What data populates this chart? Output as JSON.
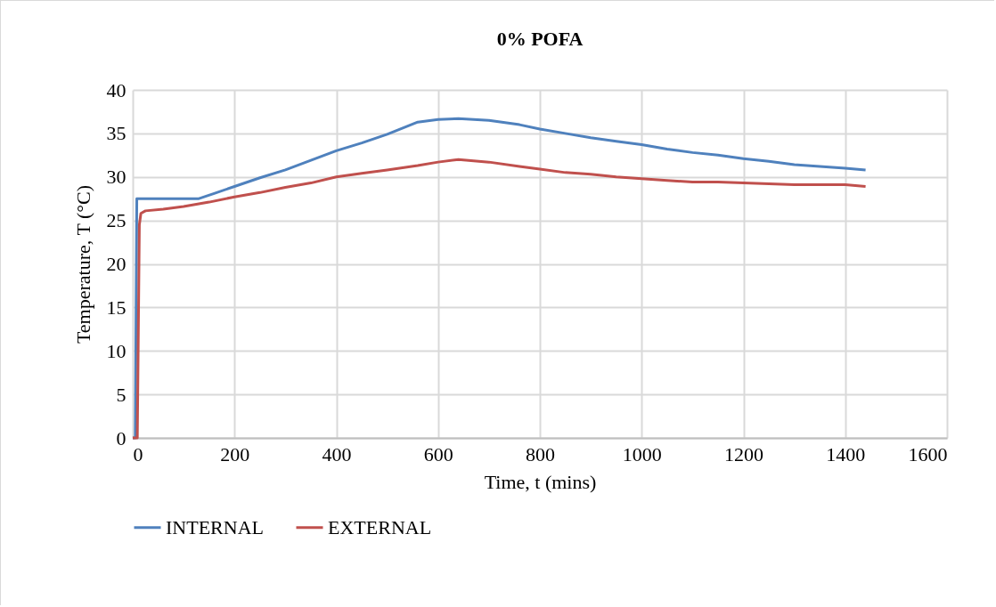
{
  "chart_data": {
    "type": "line",
    "title": "0% POFA",
    "xlabel": "Time, t (mins)",
    "ylabel": "Temperature, T (°C)",
    "xlim": [
      0,
      1600
    ],
    "xticks": [
      0,
      200,
      400,
      600,
      800,
      1000,
      1200,
      1400,
      1600
    ],
    "ylim": [
      0,
      40
    ],
    "yticks": [
      0,
      5,
      10,
      15,
      20,
      25,
      30,
      35,
      40
    ],
    "grid": true,
    "legend": "bottom",
    "marker": "none",
    "line_style": "solid",
    "series": [
      {
        "name": "INTERNAL",
        "color": "#4f81bd",
        "x": [
          0,
          5,
          8,
          130,
          160,
          200,
          250,
          300,
          350,
          400,
          450,
          500,
          560,
          600,
          640,
          700,
          760,
          800,
          850,
          900,
          950,
          1000,
          1050,
          1100,
          1150,
          1200,
          1250,
          1300,
          1350,
          1400,
          1440
        ],
        "values": [
          0,
          0,
          27.5,
          27.5,
          28.1,
          28.9,
          29.9,
          30.8,
          31.9,
          33.0,
          33.9,
          34.9,
          36.3,
          36.6,
          36.7,
          36.5,
          36.0,
          35.5,
          35.0,
          34.5,
          34.1,
          33.7,
          33.2,
          32.8,
          32.5,
          32.1,
          31.8,
          31.4,
          31.2,
          31.0,
          30.8
        ]
      },
      {
        "name": "EXTERNAL",
        "color": "#c0504d",
        "x": [
          0,
          9,
          13,
          16,
          25,
          60,
          100,
          150,
          200,
          250,
          300,
          350,
          400,
          450,
          500,
          560,
          600,
          640,
          700,
          760,
          800,
          850,
          900,
          950,
          1000,
          1050,
          1100,
          1150,
          1200,
          1250,
          1300,
          1350,
          1400,
          1440
        ],
        "values": [
          0,
          0,
          24.5,
          25.8,
          26.1,
          26.3,
          26.6,
          27.1,
          27.7,
          28.2,
          28.8,
          29.3,
          30.0,
          30.4,
          30.8,
          31.3,
          31.7,
          32.0,
          31.7,
          31.2,
          30.9,
          30.5,
          30.3,
          30.0,
          29.8,
          29.6,
          29.4,
          29.4,
          29.3,
          29.2,
          29.1,
          29.1,
          29.1,
          28.9
        ]
      }
    ]
  }
}
